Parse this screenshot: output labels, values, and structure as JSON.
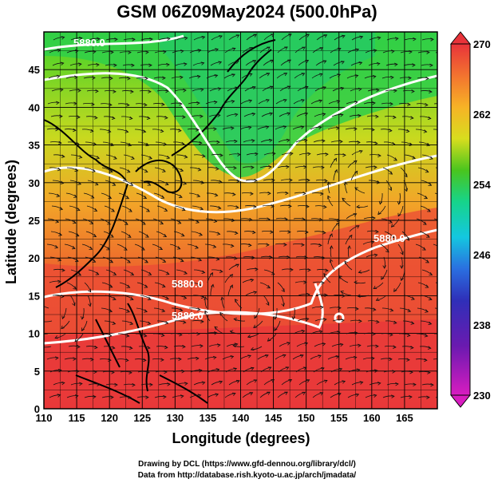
{
  "title": "GSM 06Z09May2024 (500.0hPa)",
  "xlabel": "Longitude (degrees)",
  "ylabel": "Latitude  (degrees)",
  "x_ticks": [
    "110",
    "115",
    "120",
    "125",
    "130",
    "135",
    "140",
    "145",
    "150",
    "155",
    "160",
    "165"
  ],
  "y_ticks": [
    "0",
    "5",
    "10",
    "15",
    "20",
    "25",
    "30",
    "35",
    "40",
    "45"
  ],
  "colorbar": {
    "ticks": [
      "270",
      "262",
      "254",
      "246",
      "238",
      "230"
    ],
    "colors": [
      "#e8333a",
      "#f47a2e",
      "#f6b326",
      "#d8dd1e",
      "#49c51e",
      "#16d48b",
      "#14c7e0",
      "#2a6fe0",
      "#2f2fb8",
      "#6a1ab0",
      "#d81cc0"
    ]
  },
  "contour_labels": [
    "5880.0",
    "5880.0",
    "5880.0",
    "5880.0"
  ],
  "credits": {
    "line1": "Drawing by DCL (https://www.gfd-dennou.org/library/dcl/)",
    "line2": "Data from http://database.rish.kyoto-u.ac.jp/arch/jmadata/"
  }
}
